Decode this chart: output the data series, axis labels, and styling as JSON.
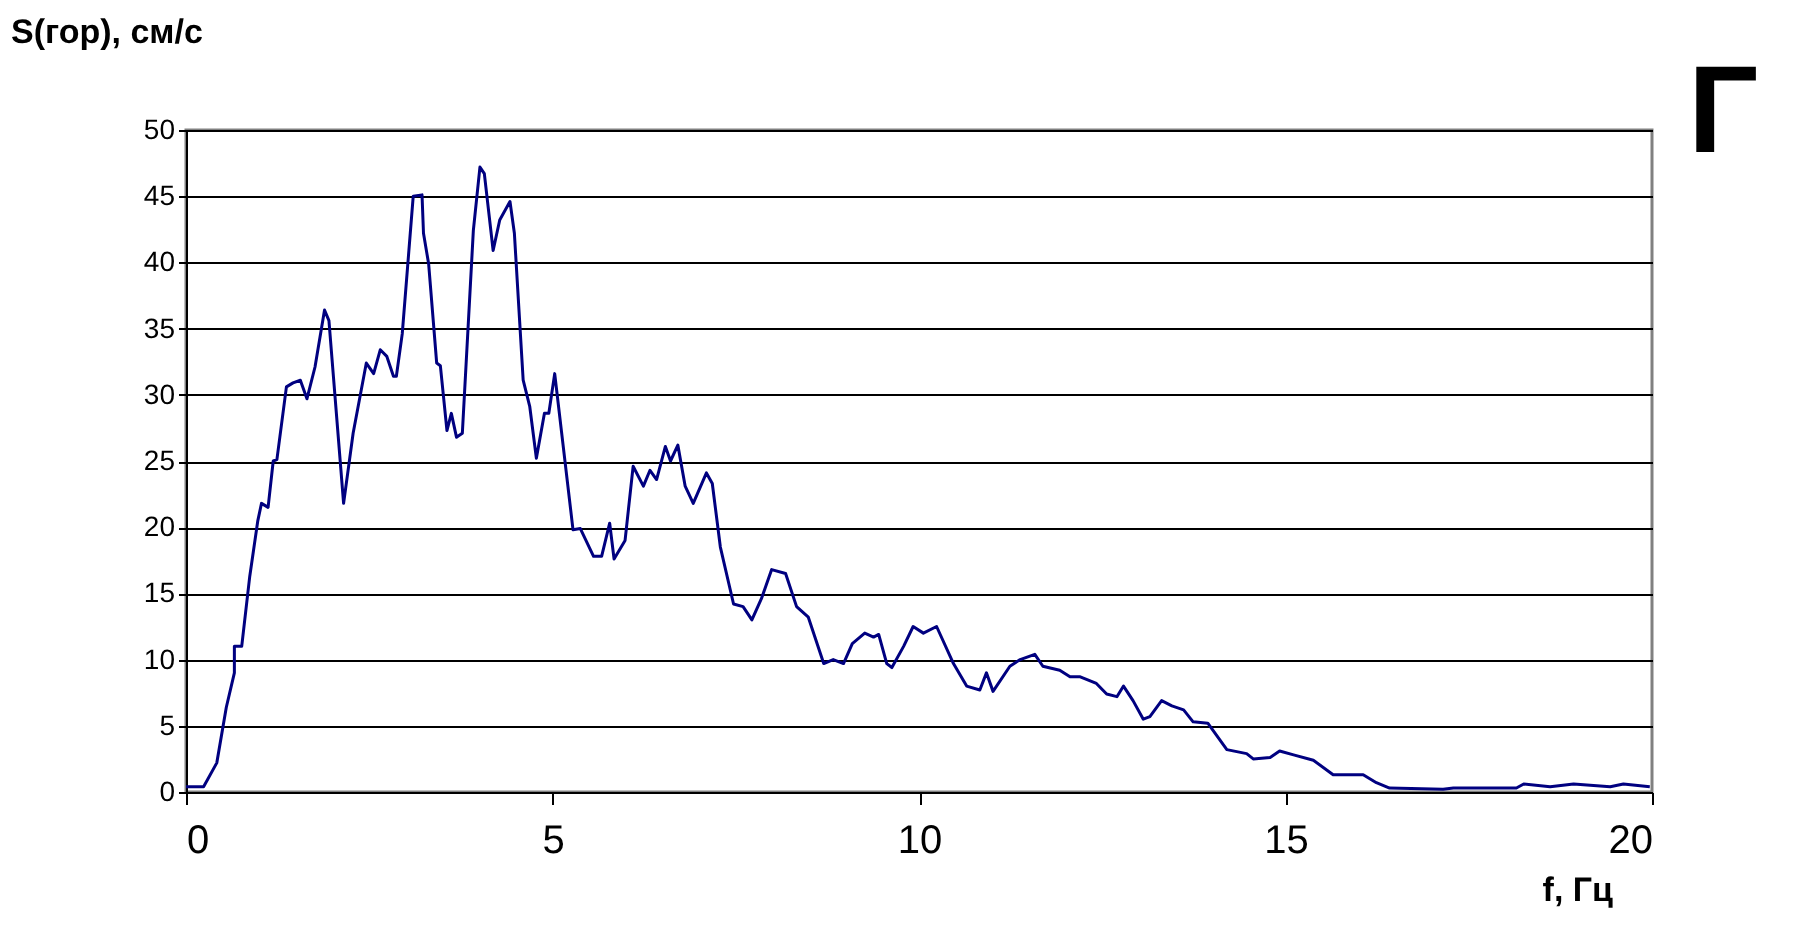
{
  "chart_data": {
    "type": "line",
    "ylabel": "S(гор), см/с",
    "xlabel": "f, Гц",
    "annotations": [
      "Г"
    ],
    "xlim": [
      0,
      20
    ],
    "ylim": [
      0,
      50
    ],
    "xticks": [
      0,
      5,
      10,
      15,
      20
    ],
    "yticks": [
      0,
      5,
      10,
      15,
      20,
      25,
      30,
      35,
      40,
      45,
      50
    ],
    "grid": "y",
    "series": [
      {
        "color": "#000080",
        "x": [
          0,
          0.24,
          0.42,
          0.55,
          0.66,
          0.66,
          0.76,
          0.87,
          0.98,
          1.03,
          1.12,
          1.19,
          1.24,
          1.37,
          1.46,
          1.56,
          1.65,
          1.76,
          1.89,
          1.95,
          2.15,
          2.28,
          2.46,
          2.56,
          2.65,
          2.74,
          2.83,
          2.87,
          2.95,
          3.1,
          3.22,
          3.24,
          3.31,
          3.42,
          3.47,
          3.56,
          3.62,
          3.69,
          3.77,
          3.92,
          4.01,
          4.07,
          4.19,
          4.28,
          4.42,
          4.48,
          4.6,
          4.69,
          4.78,
          4.89,
          4.95,
          5.03,
          5.28,
          5.38,
          5.56,
          5.67,
          5.78,
          5.84,
          5.99,
          6.1,
          6.24,
          6.33,
          6.42,
          6.54,
          6.61,
          6.71,
          6.81,
          6.92,
          7.1,
          7.18,
          7.29,
          7.47,
          7.6,
          7.72,
          7.85,
          7.99,
          8.18,
          8.33,
          8.49,
          8.7,
          8.83,
          8.97,
          9.09,
          9.26,
          9.38,
          9.45,
          9.56,
          9.63,
          9.79,
          9.92,
          10.06,
          10.24,
          10.47,
          10.65,
          10.83,
          10.92,
          11.01,
          11.24,
          11.38,
          11.58,
          11.69,
          11.92,
          12.06,
          12.2,
          12.42,
          12.56,
          12.7,
          12.79,
          12.92,
          13.06,
          13.15,
          13.31,
          13.45,
          13.61,
          13.74,
          13.94,
          14.2,
          14.47,
          14.56,
          14.79,
          14.92,
          15.11,
          15.38,
          15.65,
          16.06,
          16.24,
          16.42,
          17.15,
          17.29,
          18.15,
          18.25,
          18.61,
          18.93,
          19.43,
          19.61,
          19.97
        ],
        "values": [
          0.4,
          0.4,
          2.2,
          6.4,
          9.0,
          11.0,
          11.0,
          16.3,
          20.5,
          21.8,
          21.5,
          25.0,
          25.1,
          30.6,
          30.9,
          31.1,
          29.7,
          32.1,
          36.4,
          35.6,
          21.8,
          27.1,
          32.4,
          31.6,
          33.4,
          32.9,
          31.4,
          31.4,
          34.6,
          45.0,
          45.1,
          42.2,
          39.9,
          32.4,
          32.2,
          27.3,
          28.6,
          26.8,
          27.1,
          42.4,
          47.2,
          46.7,
          40.9,
          43.2,
          44.6,
          42.2,
          31.1,
          29.1,
          25.2,
          28.6,
          28.6,
          31.6,
          19.8,
          19.9,
          17.8,
          17.8,
          20.3,
          17.6,
          19.0,
          24.6,
          23.1,
          24.3,
          23.6,
          26.1,
          25.0,
          26.2,
          23.1,
          21.8,
          24.1,
          23.3,
          18.5,
          14.2,
          14.0,
          13.0,
          14.6,
          16.8,
          16.5,
          14.0,
          13.2,
          9.7,
          10.0,
          9.7,
          11.2,
          12.0,
          11.7,
          11.9,
          9.7,
          9.4,
          11.0,
          12.5,
          12.0,
          12.5,
          9.7,
          8.0,
          7.7,
          9.0,
          7.6,
          9.5,
          10.0,
          10.4,
          9.5,
          9.2,
          8.7,
          8.7,
          8.2,
          7.4,
          7.2,
          8.0,
          6.9,
          5.5,
          5.7,
          6.9,
          6.5,
          6.2,
          5.3,
          5.2,
          3.2,
          2.9,
          2.5,
          2.6,
          3.1,
          2.8,
          2.4,
          1.3,
          1.3,
          0.7,
          0.3,
          0.2,
          0.3,
          0.3,
          0.6,
          0.4,
          0.6,
          0.4,
          0.6,
          0.4
        ]
      }
    ]
  }
}
